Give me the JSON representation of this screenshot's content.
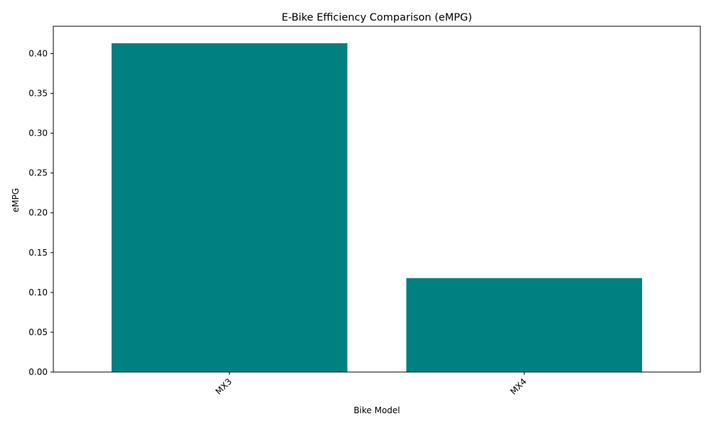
{
  "chart_data": {
    "type": "bar",
    "title": "E-Bike Efficiency Comparison (eMPG)",
    "xlabel": "Bike Model",
    "ylabel": "eMPG",
    "categories": [
      "MX3",
      "MX4"
    ],
    "values": [
      0.413,
      0.118
    ],
    "ylim": [
      0,
      0.4343
    ],
    "yticks": [
      0.0,
      0.05,
      0.1,
      0.15,
      0.2,
      0.25,
      0.3,
      0.35,
      0.4
    ],
    "ytick_labels": [
      "0.00",
      "0.05",
      "0.10",
      "0.15",
      "0.20",
      "0.25",
      "0.30",
      "0.35",
      "0.40"
    ],
    "bar_color": "#008080",
    "grid": false,
    "xtick_rotation_deg": 45
  }
}
